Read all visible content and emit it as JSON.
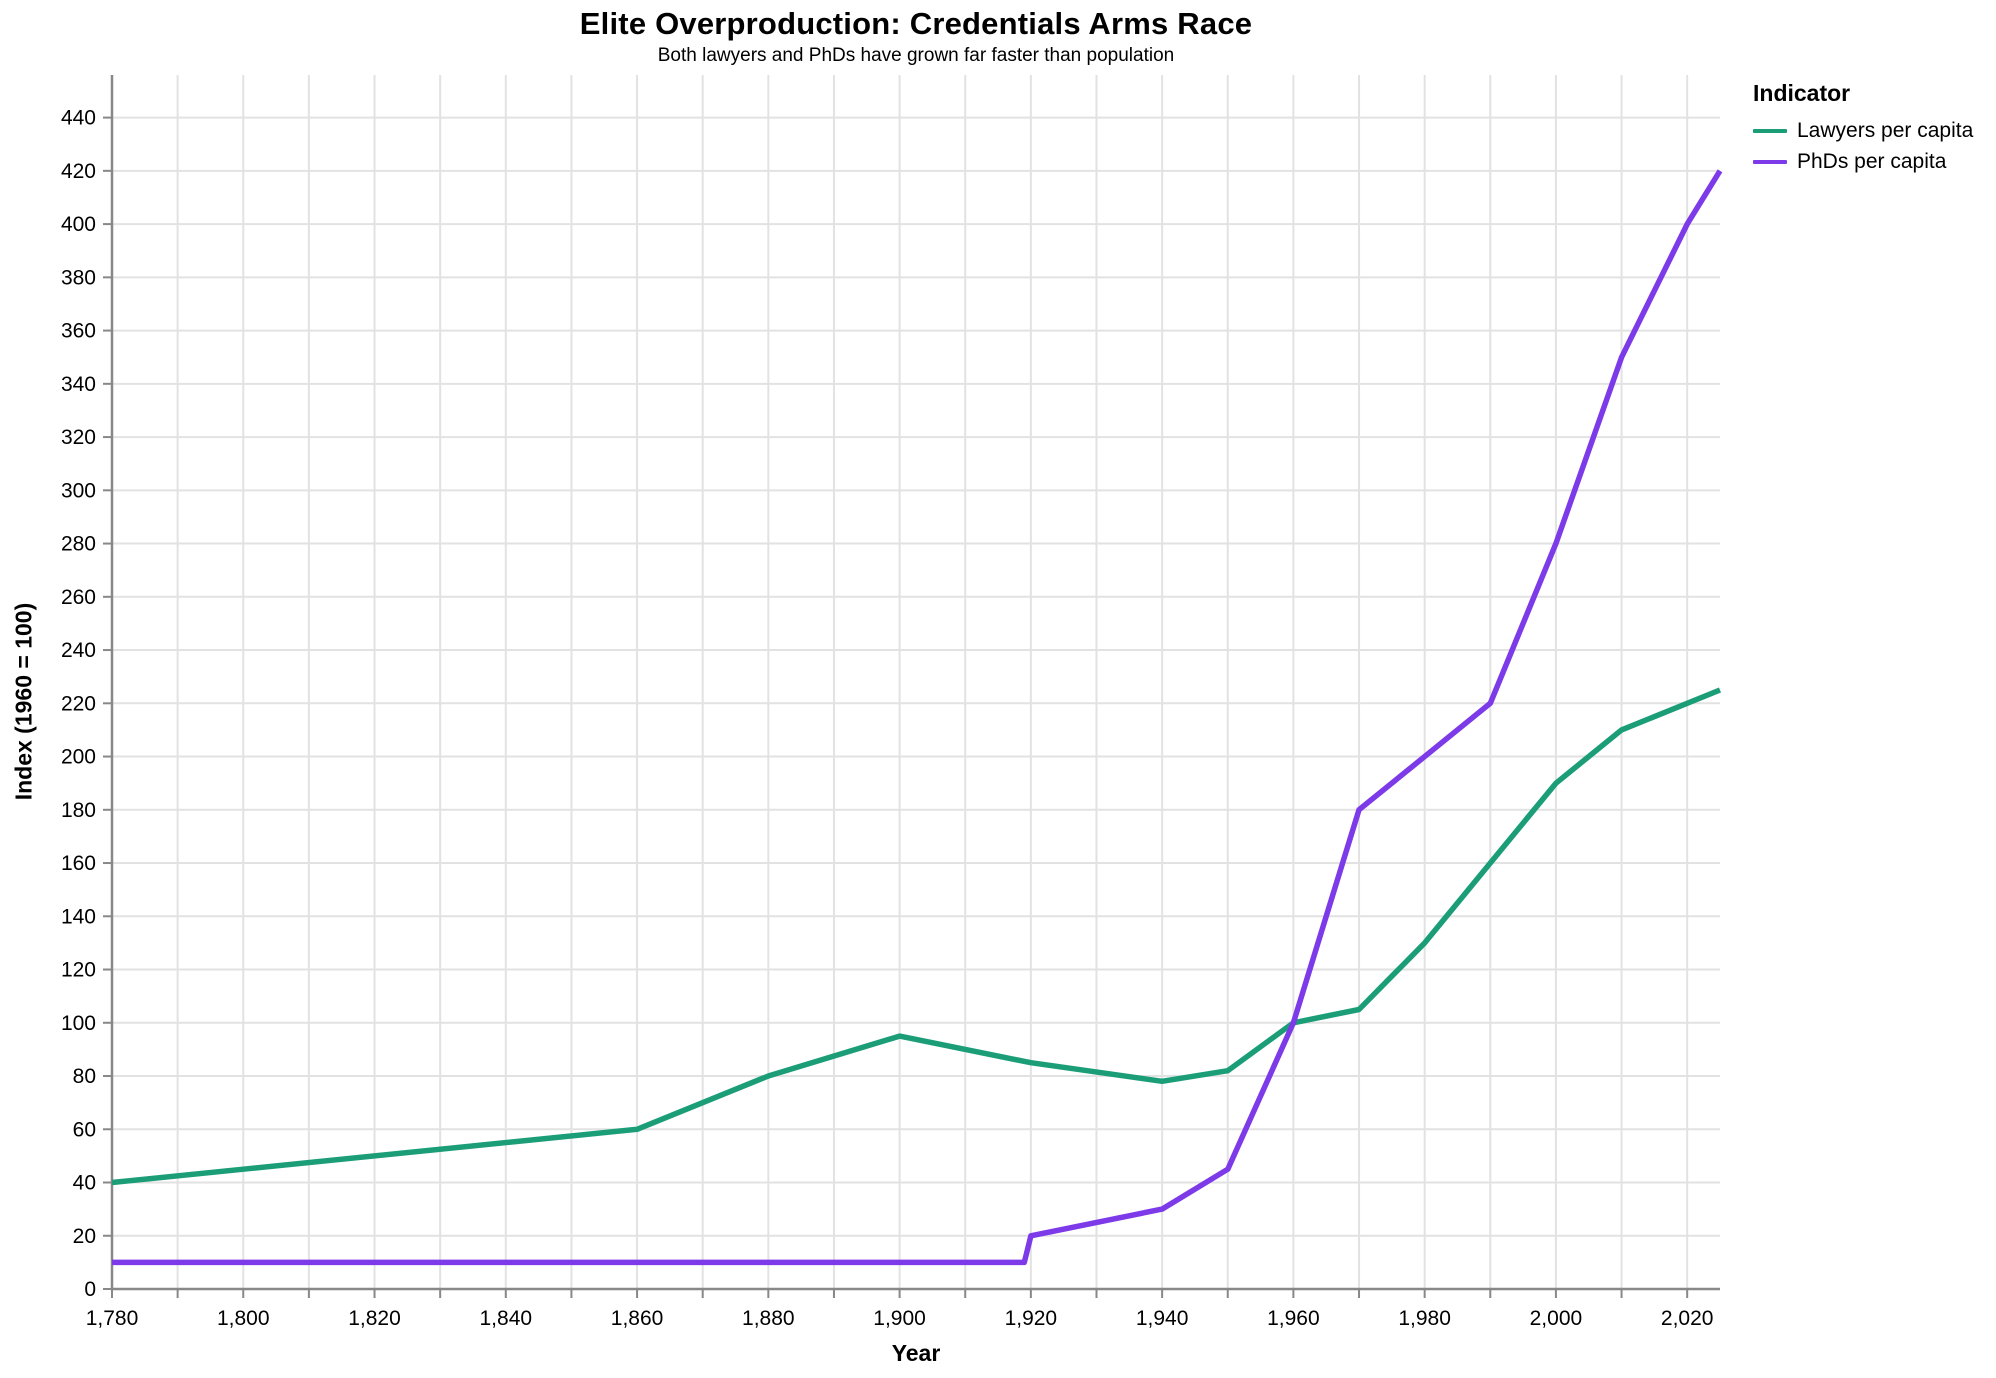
{
  "chart_data": {
    "type": "line",
    "title": "Elite Overproduction: Credentials Arms Race",
    "subtitle": "Both lawyers and PhDs have grown far faster than population",
    "xlabel": "Year",
    "ylabel": "Index (1960 = 100)",
    "legend_title": "Indicator",
    "x_domain": [
      1780,
      2025
    ],
    "y_domain": [
      0,
      456
    ],
    "x_label_step": 20,
    "x_minor_step": 10,
    "y_tick_step": 20,
    "y_max_tick": 440,
    "grid": "on",
    "legend_position": "top-right-outside",
    "x_tick_format": "comma",
    "colors": {
      "grid": "#E2E2E2",
      "axis": "#888888",
      "text": "#000000",
      "background": "#FFFFFF"
    },
    "series": [
      {
        "name": "Lawyers per capita",
        "color": "#1B9E77",
        "points": [
          [
            1780,
            40
          ],
          [
            1800,
            45
          ],
          [
            1860,
            60
          ],
          [
            1880,
            80
          ],
          [
            1900,
            95
          ],
          [
            1920,
            85
          ],
          [
            1940,
            78
          ],
          [
            1950,
            82
          ],
          [
            1960,
            100
          ],
          [
            1970,
            105
          ],
          [
            1980,
            130
          ],
          [
            1990,
            160
          ],
          [
            2000,
            190
          ],
          [
            2010,
            210
          ],
          [
            2025,
            225
          ]
        ]
      },
      {
        "name": "PhDs per capita",
        "color": "#7D3AE8",
        "points": [
          [
            1780,
            10
          ],
          [
            1919,
            10
          ],
          [
            1920,
            20
          ],
          [
            1940,
            30
          ],
          [
            1950,
            45
          ],
          [
            1960,
            100
          ],
          [
            1970,
            180
          ],
          [
            1980,
            200
          ],
          [
            1990,
            220
          ],
          [
            2000,
            280
          ],
          [
            2010,
            350
          ],
          [
            2020,
            400
          ],
          [
            2025,
            420
          ]
        ]
      }
    ]
  }
}
